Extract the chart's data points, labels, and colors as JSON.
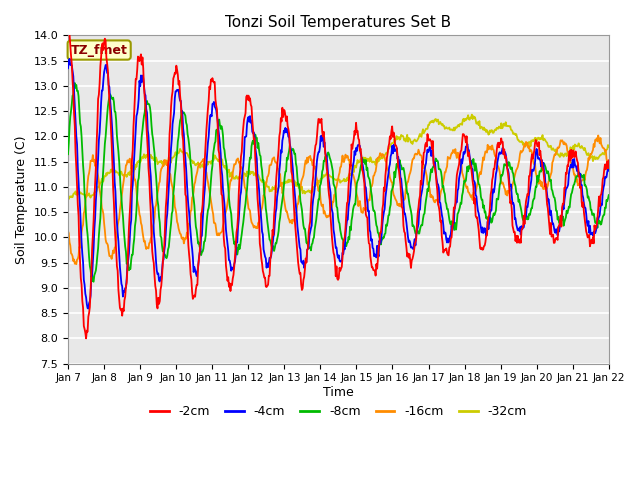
{
  "title": "Tonzi Soil Temperatures Set B",
  "xlabel": "Time",
  "ylabel": "Soil Temperature (C)",
  "ylim": [
    7.5,
    14.0
  ],
  "annotation_text": "TZ_fmet",
  "annotation_color": "#8B0000",
  "annotation_bg": "#FFFFCC",
  "annotation_border": "#999900",
  "line_colors": {
    "-2cm": "#FF0000",
    "-4cm": "#0000FF",
    "-8cm": "#00BB00",
    "-16cm": "#FF8C00",
    "-32cm": "#CCCC00"
  },
  "legend_labels": [
    "-2cm",
    "-4cm",
    "-8cm",
    "-16cm",
    "-32cm"
  ],
  "bg_color": "#E8E8E8",
  "grid_color": "#FFFFFF",
  "x_tick_labels": [
    "Jan 7",
    "Jan 8",
    "Jan 9",
    "Jan 10",
    "Jan 11",
    "Jan 12",
    "Jan 13",
    "Jan 14",
    "Jan 15",
    "Jan 16",
    "Jan 17",
    "Jan 18",
    "Jan 19",
    "Jan 20",
    "Jan 21",
    "Jan 22"
  ],
  "n_points": 720,
  "days": 15
}
